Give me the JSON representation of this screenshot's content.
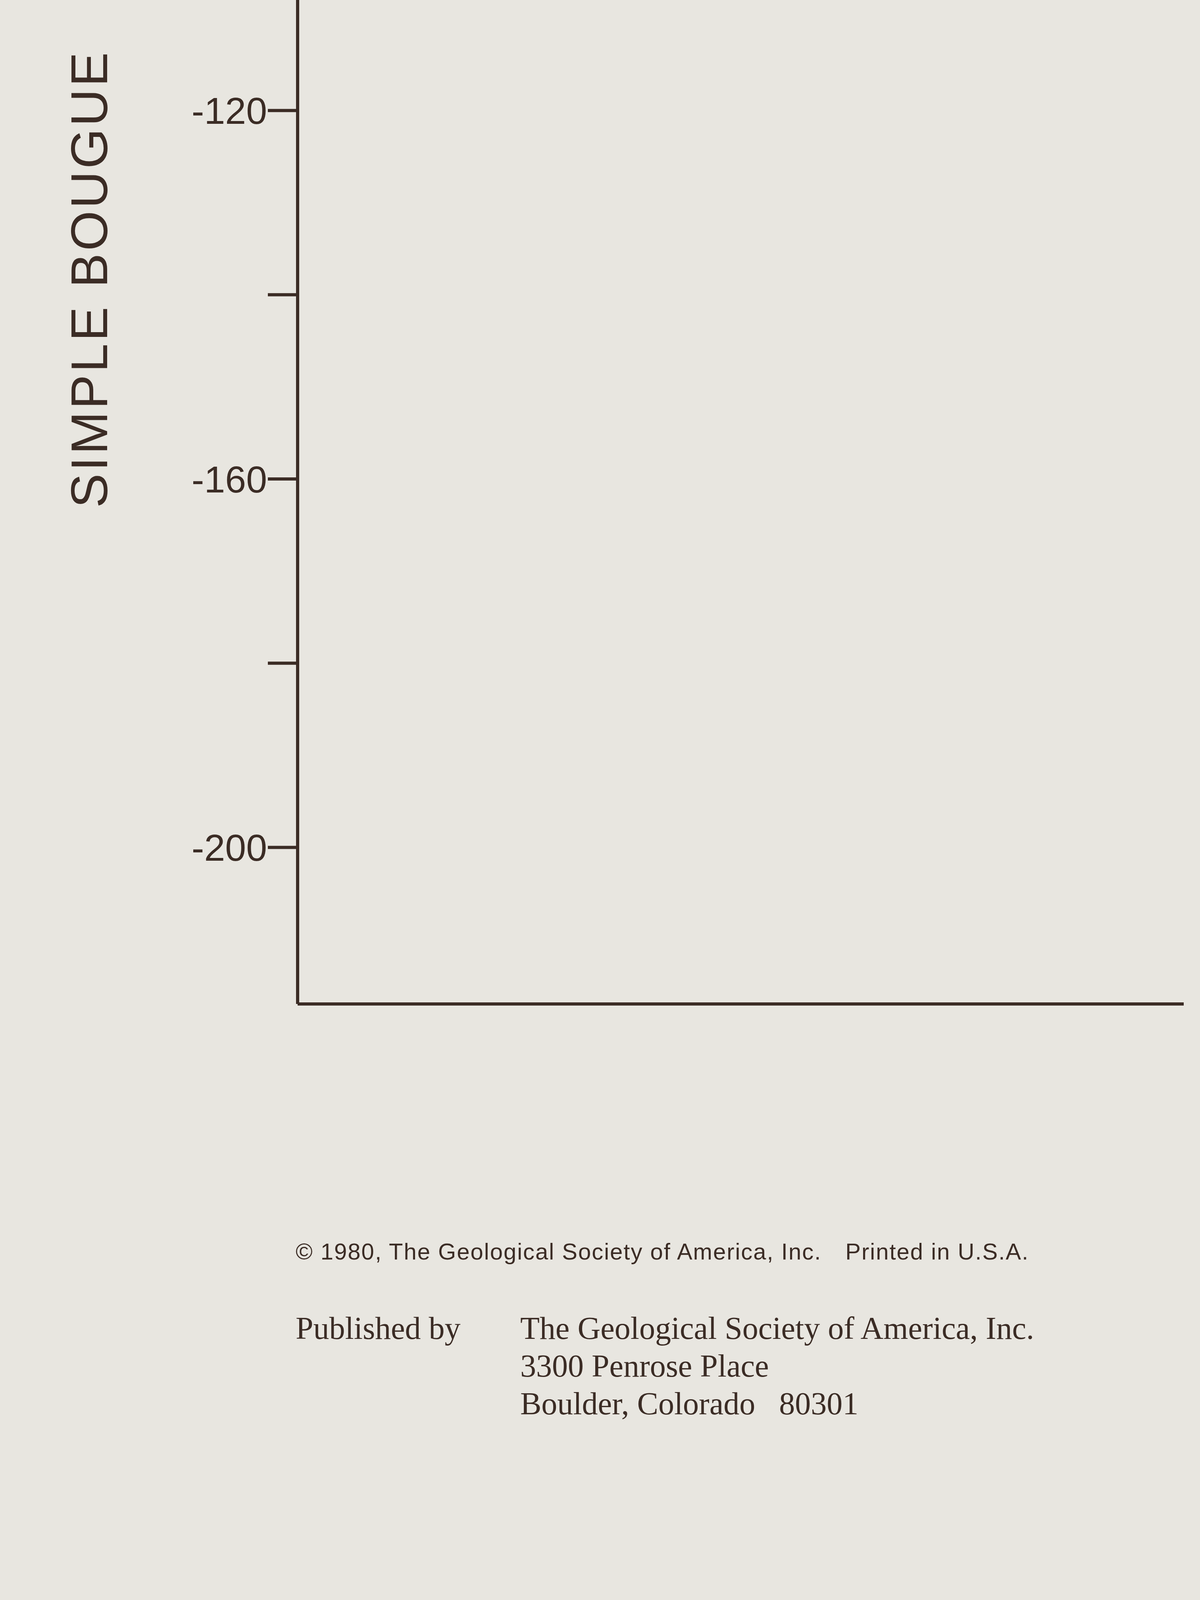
{
  "chart_data": {
    "type": "line",
    "y_label": "SIMPLE BOUGUE",
    "ylim": [
      -217,
      -108
    ],
    "yticks": [
      -120,
      -160,
      -200
    ],
    "minor_yticks": [
      -140,
      -180
    ],
    "series": []
  },
  "footer": {
    "copyright": "© 1980, The Geological Society of America, Inc.",
    "printed": "Printed in U.S.A.",
    "published_label": "Published by",
    "publisher_lines": [
      "The Geological Society of America, Inc.",
      "3300 Penrose Place",
      "Boulder, Colorado   80301"
    ]
  }
}
